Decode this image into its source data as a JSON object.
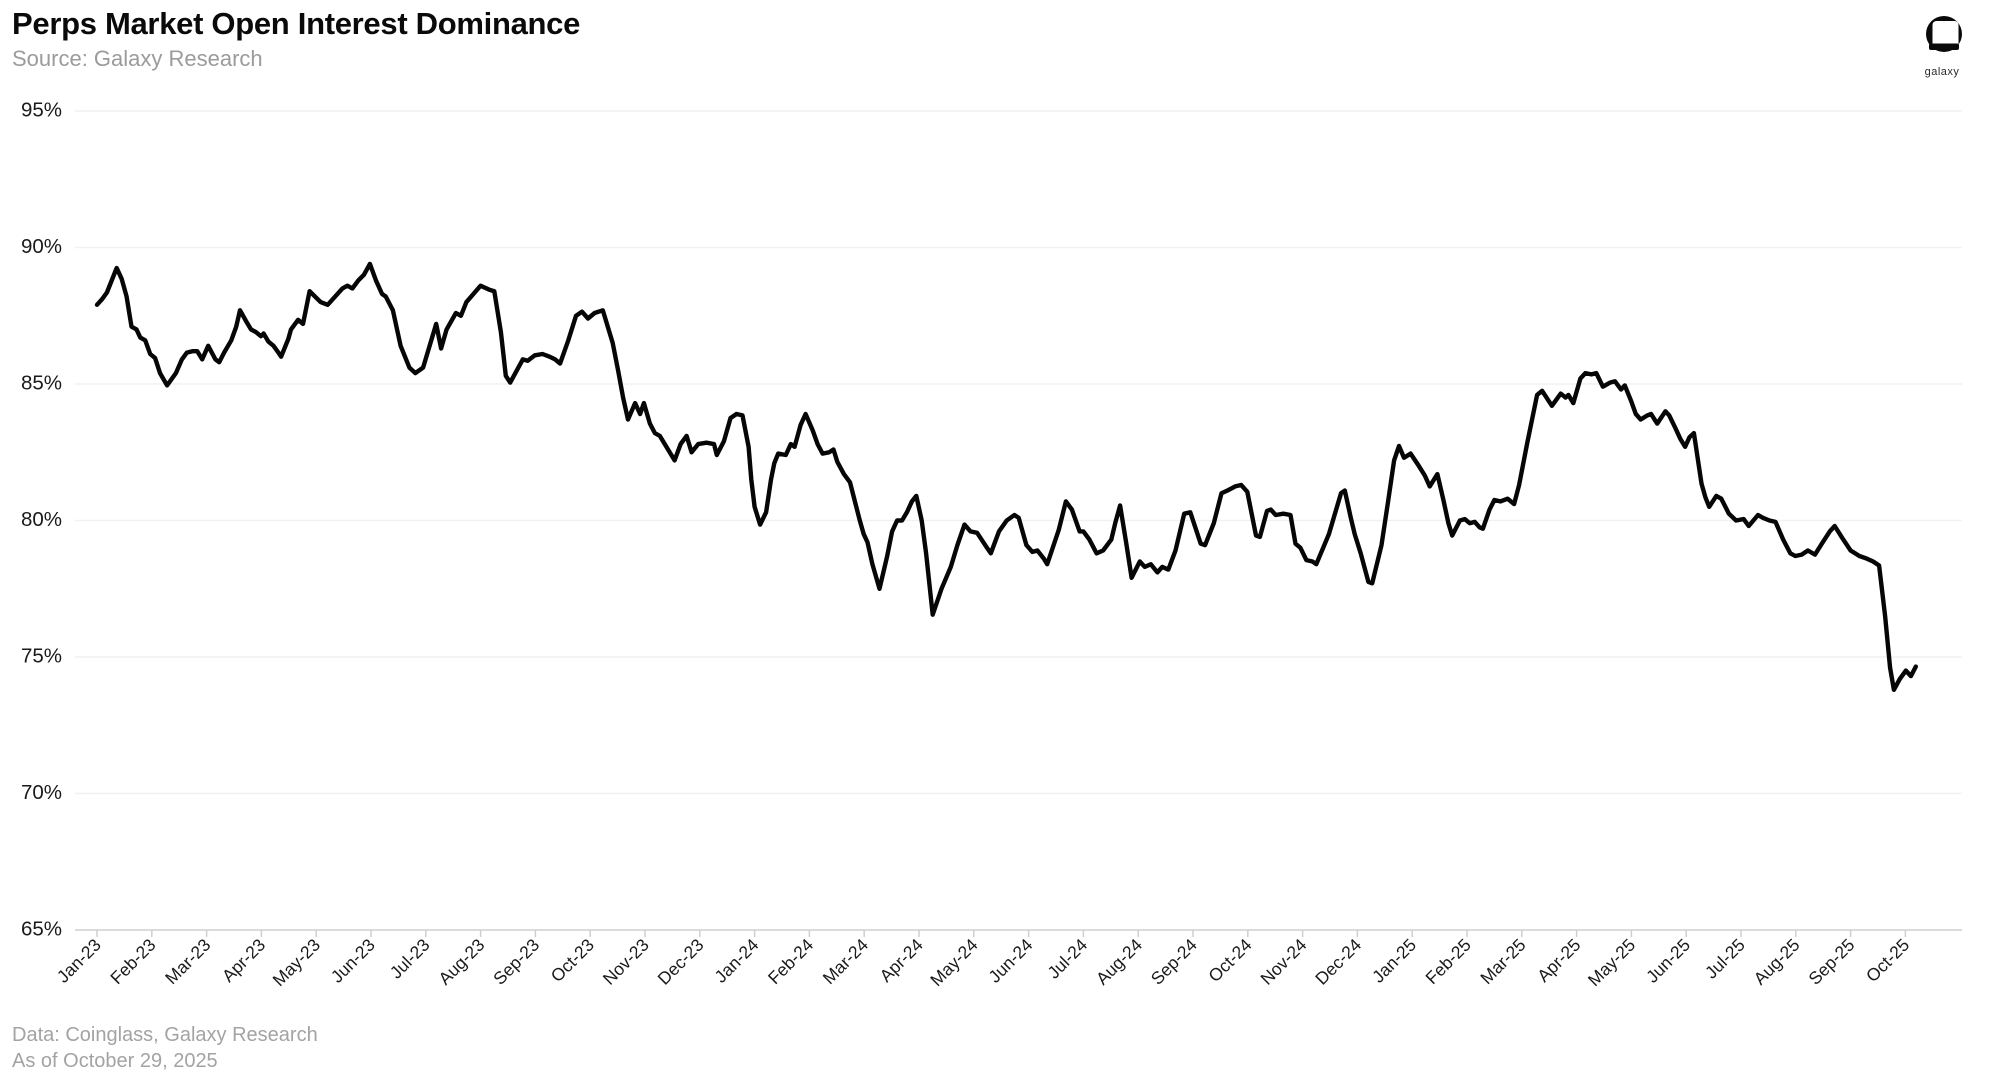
{
  "header": {
    "title": "Perps Market Open Interest Dominance",
    "subtitle": "Source: Galaxy Research"
  },
  "logo": {
    "word": "galaxy"
  },
  "footer": {
    "line1": "Data: Coinglass, Galaxy Research",
    "line2": "As of October 29, 2025"
  },
  "colors": {
    "line": "#060606",
    "grid": "#f1f1f1",
    "axis": "#cfcfcf",
    "tick_label": "#1a1a1a",
    "muted_text": "#a3a3a3"
  },
  "chart_data": {
    "type": "line",
    "title": "Perps Market Open Interest Dominance",
    "series_name": "Perps market open interest dominance",
    "x_unit": "months since Jan-2023 (decimal)",
    "xlabel": "",
    "ylabel": "",
    "ylim": [
      65,
      95
    ],
    "yticks": [
      65,
      70,
      75,
      80,
      85,
      90,
      95
    ],
    "grid": "horizontal",
    "legend": "none",
    "x_tick_labels": [
      "Jan-23",
      "Feb-23",
      "Mar-23",
      "Apr-23",
      "May-23",
      "Jun-23",
      "Jul-23",
      "Aug-23",
      "Sep-23",
      "Oct-23",
      "Nov-23",
      "Dec-23",
      "Jan-24",
      "Feb-24",
      "Mar-24",
      "Apr-24",
      "May-24",
      "Jun-24",
      "Jul-24",
      "Aug-24",
      "Sep-24",
      "Oct-24",
      "Nov-24",
      "Dec-24",
      "Jan-25",
      "Feb-25",
      "Mar-25",
      "Apr-25",
      "May-25",
      "Jun-25",
      "Jul-25",
      "Aug-25",
      "Sep-25",
      "Oct-25"
    ],
    "points": [
      [
        0,
        87.9
      ],
      [
        0.09,
        88.1
      ],
      [
        0.18,
        88.35
      ],
      [
        0.29,
        88.9
      ],
      [
        0.36,
        89.25
      ],
      [
        0.45,
        88.85
      ],
      [
        0.54,
        88.2
      ],
      [
        0.63,
        87.1
      ],
      [
        0.72,
        87.0
      ],
      [
        0.79,
        86.7
      ],
      [
        0.88,
        86.6
      ],
      [
        0.97,
        86.1
      ],
      [
        1.06,
        85.95
      ],
      [
        1.15,
        85.4
      ],
      [
        1.28,
        84.95
      ],
      [
        1.44,
        85.4
      ],
      [
        1.55,
        85.9
      ],
      [
        1.64,
        86.15
      ],
      [
        1.74,
        86.2
      ],
      [
        1.83,
        86.2
      ],
      [
        1.92,
        85.9
      ],
      [
        2.03,
        86.4
      ],
      [
        2.16,
        85.9
      ],
      [
        2.23,
        85.8
      ],
      [
        2.32,
        86.15
      ],
      [
        2.45,
        86.6
      ],
      [
        2.54,
        87.1
      ],
      [
        2.61,
        87.7
      ],
      [
        2.72,
        87.3
      ],
      [
        2.81,
        87.0
      ],
      [
        2.9,
        86.9
      ],
      [
        2.99,
        86.75
      ],
      [
        3.04,
        86.85
      ],
      [
        3.13,
        86.55
      ],
      [
        3.22,
        86.4
      ],
      [
        3.31,
        86.15
      ],
      [
        3.36,
        86.0
      ],
      [
        3.49,
        86.65
      ],
      [
        3.54,
        87.0
      ],
      [
        3.67,
        87.35
      ],
      [
        3.76,
        87.2
      ],
      [
        3.88,
        88.4
      ],
      [
        4.08,
        88.0
      ],
      [
        4.21,
        87.9
      ],
      [
        4.48,
        88.5
      ],
      [
        4.57,
        88.6
      ],
      [
        4.66,
        88.5
      ],
      [
        4.77,
        88.8
      ],
      [
        4.87,
        89.0
      ],
      [
        4.98,
        89.4
      ],
      [
        5.09,
        88.8
      ],
      [
        5.2,
        88.3
      ],
      [
        5.27,
        88.2
      ],
      [
        5.4,
        87.7
      ],
      [
        5.54,
        86.4
      ],
      [
        5.7,
        85.6
      ],
      [
        5.81,
        85.4
      ],
      [
        5.95,
        85.6
      ],
      [
        6.04,
        86.2
      ],
      [
        6.19,
        87.2
      ],
      [
        6.28,
        86.3
      ],
      [
        6.38,
        87.0
      ],
      [
        6.55,
        87.6
      ],
      [
        6.64,
        87.5
      ],
      [
        6.74,
        88.0
      ],
      [
        7.0,
        88.6
      ],
      [
        7.16,
        88.45
      ],
      [
        7.25,
        88.4
      ],
      [
        7.37,
        86.9
      ],
      [
        7.46,
        85.3
      ],
      [
        7.54,
        85.05
      ],
      [
        7.66,
        85.5
      ],
      [
        7.77,
        85.9
      ],
      [
        7.86,
        85.85
      ],
      [
        7.99,
        86.05
      ],
      [
        8.13,
        86.1
      ],
      [
        8.26,
        86.0
      ],
      [
        8.36,
        85.9
      ],
      [
        8.45,
        85.75
      ],
      [
        8.6,
        86.6
      ],
      [
        8.74,
        87.5
      ],
      [
        8.85,
        87.65
      ],
      [
        8.96,
        87.4
      ],
      [
        9.08,
        87.6
      ],
      [
        9.23,
        87.7
      ],
      [
        9.41,
        86.5
      ],
      [
        9.51,
        85.5
      ],
      [
        9.6,
        84.5
      ],
      [
        9.69,
        83.7
      ],
      [
        9.82,
        84.3
      ],
      [
        9.91,
        83.9
      ],
      [
        9.98,
        84.3
      ],
      [
        10.09,
        83.55
      ],
      [
        10.18,
        83.2
      ],
      [
        10.27,
        83.1
      ],
      [
        10.45,
        82.5
      ],
      [
        10.54,
        82.2
      ],
      [
        10.65,
        82.8
      ],
      [
        10.76,
        83.1
      ],
      [
        10.85,
        82.5
      ],
      [
        10.97,
        82.8
      ],
      [
        11.12,
        82.85
      ],
      [
        11.26,
        82.8
      ],
      [
        11.31,
        82.4
      ],
      [
        11.44,
        82.9
      ],
      [
        11.56,
        83.75
      ],
      [
        11.67,
        83.9
      ],
      [
        11.78,
        83.85
      ],
      [
        11.89,
        82.7
      ],
      [
        11.94,
        81.5
      ],
      [
        12.0,
        80.5
      ],
      [
        12.1,
        79.85
      ],
      [
        12.21,
        80.3
      ],
      [
        12.3,
        81.5
      ],
      [
        12.36,
        82.1
      ],
      [
        12.43,
        82.45
      ],
      [
        12.57,
        82.4
      ],
      [
        12.66,
        82.8
      ],
      [
        12.73,
        82.7
      ],
      [
        12.84,
        83.5
      ],
      [
        12.93,
        83.9
      ],
      [
        13.06,
        83.3
      ],
      [
        13.15,
        82.8
      ],
      [
        13.24,
        82.45
      ],
      [
        13.36,
        82.5
      ],
      [
        13.44,
        82.6
      ],
      [
        13.51,
        82.15
      ],
      [
        13.63,
        81.7
      ],
      [
        13.74,
        81.4
      ],
      [
        13.83,
        80.7
      ],
      [
        13.92,
        80.0
      ],
      [
        13.99,
        79.5
      ],
      [
        14.06,
        79.2
      ],
      [
        14.15,
        78.4
      ],
      [
        14.28,
        77.5
      ],
      [
        14.42,
        78.7
      ],
      [
        14.51,
        79.6
      ],
      [
        14.6,
        80.0
      ],
      [
        14.69,
        80.0
      ],
      [
        14.78,
        80.3
      ],
      [
        14.87,
        80.7
      ],
      [
        14.95,
        80.9
      ],
      [
        15.05,
        80.0
      ],
      [
        15.13,
        78.8
      ],
      [
        15.25,
        76.55
      ],
      [
        15.41,
        77.5
      ],
      [
        15.58,
        78.3
      ],
      [
        15.7,
        79.1
      ],
      [
        15.83,
        79.85
      ],
      [
        15.94,
        79.6
      ],
      [
        16.06,
        79.55
      ],
      [
        16.24,
        79.0
      ],
      [
        16.31,
        78.8
      ],
      [
        16.46,
        79.6
      ],
      [
        16.6,
        80.0
      ],
      [
        16.74,
        80.2
      ],
      [
        16.82,
        80.1
      ],
      [
        16.96,
        79.1
      ],
      [
        17.07,
        78.85
      ],
      [
        17.16,
        78.9
      ],
      [
        17.28,
        78.6
      ],
      [
        17.34,
        78.4
      ],
      [
        17.55,
        79.65
      ],
      [
        17.68,
        80.7
      ],
      [
        17.79,
        80.4
      ],
      [
        17.93,
        79.6
      ],
      [
        18.0,
        79.6
      ],
      [
        18.11,
        79.3
      ],
      [
        18.24,
        78.8
      ],
      [
        18.36,
        78.9
      ],
      [
        18.51,
        79.3
      ],
      [
        18.58,
        79.9
      ],
      [
        18.67,
        80.55
      ],
      [
        18.78,
        79.2
      ],
      [
        18.88,
        77.9
      ],
      [
        19.03,
        78.5
      ],
      [
        19.12,
        78.3
      ],
      [
        19.23,
        78.4
      ],
      [
        19.35,
        78.1
      ],
      [
        19.44,
        78.3
      ],
      [
        19.55,
        78.2
      ],
      [
        19.68,
        78.9
      ],
      [
        19.84,
        80.25
      ],
      [
        19.95,
        80.3
      ],
      [
        20.14,
        79.15
      ],
      [
        20.22,
        79.1
      ],
      [
        20.38,
        79.9
      ],
      [
        20.52,
        81.0
      ],
      [
        20.63,
        81.1
      ],
      [
        20.77,
        81.25
      ],
      [
        20.88,
        81.3
      ],
      [
        20.99,
        81.05
      ],
      [
        21.15,
        79.45
      ],
      [
        21.22,
        79.4
      ],
      [
        21.35,
        80.35
      ],
      [
        21.42,
        80.4
      ],
      [
        21.51,
        80.2
      ],
      [
        21.65,
        80.25
      ],
      [
        21.78,
        80.2
      ],
      [
        21.87,
        79.15
      ],
      [
        21.96,
        79.0
      ],
      [
        22.07,
        78.55
      ],
      [
        22.18,
        78.5
      ],
      [
        22.25,
        78.4
      ],
      [
        22.48,
        79.5
      ],
      [
        22.7,
        81.0
      ],
      [
        22.77,
        81.1
      ],
      [
        22.88,
        80.1
      ],
      [
        22.95,
        79.5
      ],
      [
        23.06,
        78.8
      ],
      [
        23.2,
        77.75
      ],
      [
        23.27,
        77.7
      ],
      [
        23.44,
        79.1
      ],
      [
        23.56,
        80.7
      ],
      [
        23.67,
        82.2
      ],
      [
        23.76,
        82.73
      ],
      [
        23.85,
        82.3
      ],
      [
        23.97,
        82.45
      ],
      [
        24.12,
        82.0
      ],
      [
        24.23,
        81.65
      ],
      [
        24.32,
        81.25
      ],
      [
        24.46,
        81.7
      ],
      [
        24.57,
        80.75
      ],
      [
        24.66,
        79.9
      ],
      [
        24.73,
        79.45
      ],
      [
        24.87,
        80.0
      ],
      [
        24.96,
        80.05
      ],
      [
        25.05,
        79.9
      ],
      [
        25.14,
        79.95
      ],
      [
        25.23,
        79.75
      ],
      [
        25.29,
        79.7
      ],
      [
        25.41,
        80.4
      ],
      [
        25.5,
        80.75
      ],
      [
        25.61,
        80.7
      ],
      [
        25.74,
        80.8
      ],
      [
        25.86,
        80.6
      ],
      [
        25.95,
        81.3
      ],
      [
        26.1,
        82.85
      ],
      [
        26.28,
        84.6
      ],
      [
        26.37,
        84.75
      ],
      [
        26.55,
        84.2
      ],
      [
        26.71,
        84.65
      ],
      [
        26.8,
        84.5
      ],
      [
        26.85,
        84.6
      ],
      [
        26.94,
        84.3
      ],
      [
        27.07,
        85.2
      ],
      [
        27.16,
        85.4
      ],
      [
        27.27,
        85.35
      ],
      [
        27.36,
        85.4
      ],
      [
        27.48,
        84.9
      ],
      [
        27.61,
        85.05
      ],
      [
        27.7,
        85.1
      ],
      [
        27.81,
        84.8
      ],
      [
        27.88,
        84.95
      ],
      [
        27.99,
        84.4
      ],
      [
        28.08,
        83.9
      ],
      [
        28.17,
        83.7
      ],
      [
        28.29,
        83.85
      ],
      [
        28.36,
        83.9
      ],
      [
        28.47,
        83.55
      ],
      [
        28.62,
        84.0
      ],
      [
        28.69,
        83.85
      ],
      [
        28.8,
        83.4
      ],
      [
        28.89,
        83.0
      ],
      [
        28.98,
        82.7
      ],
      [
        29.06,
        83.05
      ],
      [
        29.14,
        83.2
      ],
      [
        29.28,
        81.35
      ],
      [
        29.35,
        80.85
      ],
      [
        29.42,
        80.5
      ],
      [
        29.55,
        80.9
      ],
      [
        29.64,
        80.8
      ],
      [
        29.78,
        80.25
      ],
      [
        29.91,
        80.0
      ],
      [
        30.05,
        80.05
      ],
      [
        30.14,
        79.8
      ],
      [
        30.31,
        80.2
      ],
      [
        30.4,
        80.1
      ],
      [
        30.52,
        80.0
      ],
      [
        30.63,
        79.95
      ],
      [
        30.77,
        79.3
      ],
      [
        30.9,
        78.8
      ],
      [
        30.99,
        78.7
      ],
      [
        31.11,
        78.75
      ],
      [
        31.22,
        78.9
      ],
      [
        31.35,
        78.75
      ],
      [
        31.49,
        79.2
      ],
      [
        31.62,
        79.6
      ],
      [
        31.71,
        79.8
      ],
      [
        31.85,
        79.35
      ],
      [
        32.0,
        78.9
      ],
      [
        32.16,
        78.7
      ],
      [
        32.3,
        78.6
      ],
      [
        32.41,
        78.5
      ],
      [
        32.52,
        78.35
      ],
      [
        32.63,
        76.5
      ],
      [
        32.72,
        74.6
      ],
      [
        32.79,
        73.8
      ],
      [
        32.9,
        74.2
      ],
      [
        33.01,
        74.5
      ],
      [
        33.1,
        74.3
      ],
      [
        33.19,
        74.65
      ]
    ]
  }
}
